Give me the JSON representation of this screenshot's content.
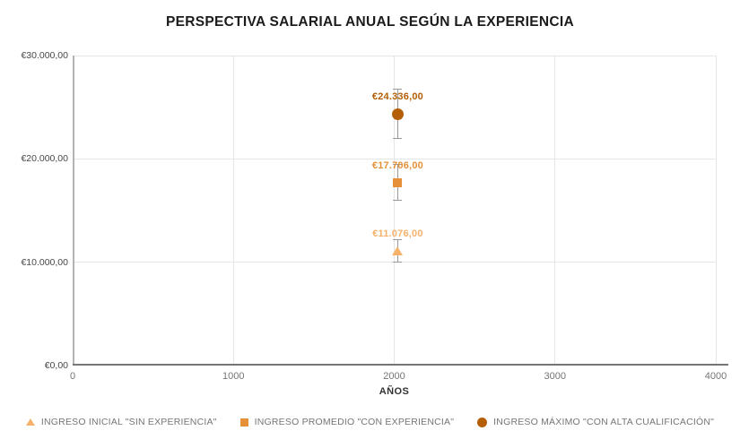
{
  "colors": {
    "background": "#ffffff",
    "grid": "#e6e6e6",
    "y_axis_line": "#b3b3b3",
    "x_axis_line": "#757575",
    "error_bar": "#999999",
    "tick_text": "#757575",
    "title_text": "#1b1b1b"
  },
  "chart_data": {
    "type": "scatter",
    "title": "PERSPECTIVA SALARIAL ANUAL SEGÚN LA EXPERIENCIA",
    "xlabel": "AÑOS",
    "ylabel": "",
    "xlim": [
      0,
      4000
    ],
    "ylim": [
      0,
      30000
    ],
    "grid": true,
    "legend_position": "bottom",
    "error_bars": "10%",
    "x_ticks": [
      {
        "value": 0,
        "label": "0"
      },
      {
        "value": 1000,
        "label": "1000"
      },
      {
        "value": 2000,
        "label": "2000"
      },
      {
        "value": 3000,
        "label": "3000"
      },
      {
        "value": 4000,
        "label": "4000"
      }
    ],
    "y_ticks": [
      {
        "value": 0,
        "label": "€0,00"
      },
      {
        "value": 10000,
        "label": "€10.000,00"
      },
      {
        "value": 20000,
        "label": "€20.000,00"
      },
      {
        "value": 30000,
        "label": "€30.000,00"
      }
    ],
    "series": [
      {
        "name": "INGRESO INICIAL \"SIN EXPERIENCIA\"",
        "marker": "triangle",
        "color": "#f6b26b",
        "x": 2022,
        "y": 11076,
        "label": "€11.076,00",
        "error": 1107.6
      },
      {
        "name": "INGRESO PROMEDIO \"CON EXPERIENCIA\"",
        "marker": "square",
        "color": "#e69138",
        "x": 2022,
        "y": 17706,
        "label": "€17.706,00",
        "error": 1770.6
      },
      {
        "name": "INGRESO MÁXIMO \"CON ALTA CUALIFICACIÓN\"",
        "marker": "circle",
        "color": "#b45f06",
        "x": 2022,
        "y": 24336,
        "label": "€24.336,00",
        "error": 2433.6
      }
    ]
  }
}
